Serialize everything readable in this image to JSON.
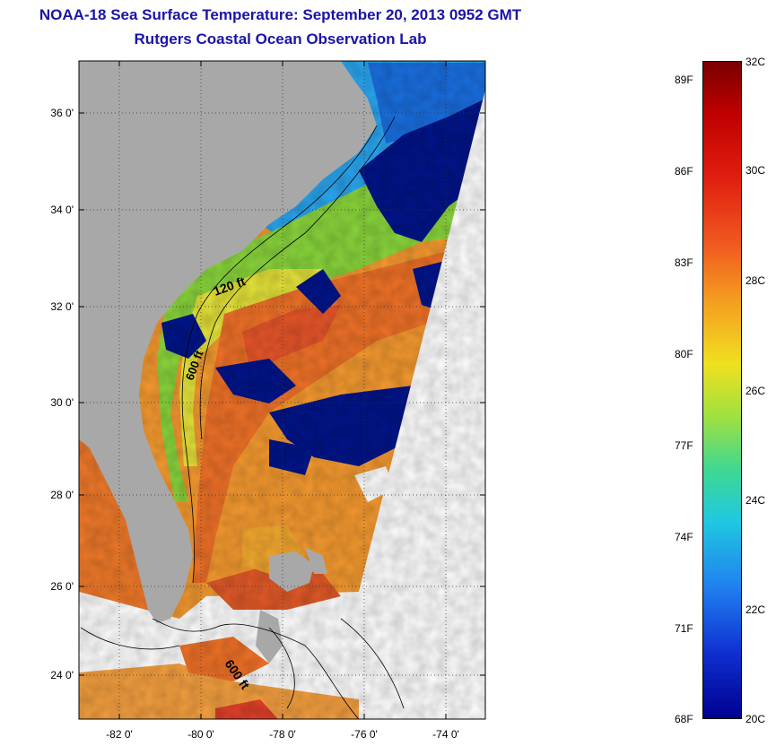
{
  "title": {
    "line1": "NOAA-18 Sea Surface Temperature:  September 20, 2013 0952 GMT",
    "line2": "Rutgers Coastal Ocean Observation Lab"
  },
  "map": {
    "lat_ticks": [
      "36 0'",
      "34 0'",
      "32 0'",
      "30 0'",
      "28 0'",
      "26 0'",
      "24 0'"
    ],
    "lon_ticks": [
      "-82 0'",
      "-80 0'",
      "-78 0'",
      "-76 0'",
      "-74 0'"
    ],
    "contour_labels": [
      "120 ft",
      "600 ft",
      "600 ft"
    ],
    "colors": {
      "land": "#a8a8a8",
      "cloud": "#00158a",
      "warm": "#f07a2a",
      "green": "#66d44a",
      "yellow": "#e8e838"
    }
  },
  "colorbar": {
    "celsius": [
      "32C",
      "30C",
      "28C",
      "26C",
      "24C",
      "22C",
      "20C"
    ],
    "fahrenheit": [
      "89F",
      "86F",
      "83F",
      "80F",
      "77F",
      "74F",
      "71F",
      "68F"
    ],
    "range_c": [
      20,
      32
    ]
  }
}
